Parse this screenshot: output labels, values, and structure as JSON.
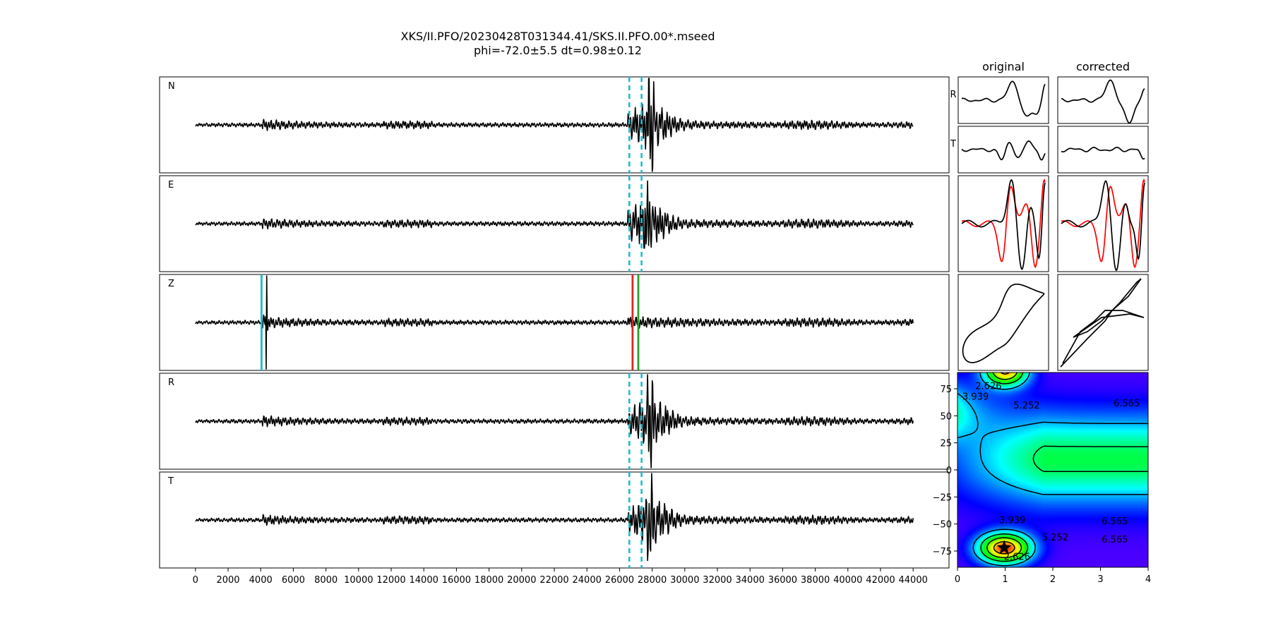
{
  "header": {
    "title_line1": "XKS/II.PFO/20230428T031344.41/SKS.II.PFO.00*.mseed",
    "title_line2": "phi=-72.0±5.5 dt=0.98±0.12"
  },
  "columns": {
    "original": "original",
    "corrected": "corrected"
  },
  "chart_data": [
    {
      "type": "line",
      "description_key": "waveform-traces",
      "traces": [
        {
          "name": "N",
          "burst_ratio": 1.4,
          "main_arrival": 27900,
          "peak_factor": 2.4
        },
        {
          "name": "E",
          "burst_ratio": 1.3,
          "main_arrival": 27700,
          "peak_factor": 1.7
        },
        {
          "name": "Z",
          "burst_ratio": 1.6,
          "main_arrival": 4350,
          "peak_factor": 1.6
        },
        {
          "name": "R",
          "burst_ratio": 1.4,
          "main_arrival": 27900,
          "peak_factor": 2.4
        },
        {
          "name": "T",
          "burst_ratio": 1.2,
          "main_arrival": 27900,
          "peak_factor": 2.1
        }
      ],
      "x_range": [
        0,
        44000
      ],
      "xlim": [
        -2200,
        46200
      ],
      "x_ticks": [
        0,
        2000,
        4000,
        6000,
        8000,
        10000,
        12000,
        14000,
        16000,
        18000,
        20000,
        22000,
        24000,
        26000,
        28000,
        30000,
        32000,
        34000,
        36000,
        38000,
        40000,
        42000,
        44000
      ],
      "x_tick_labels": [
        "0",
        "2000",
        "4000",
        "6000",
        "8000",
        "10000",
        "12000",
        "14000",
        "16000",
        "18000",
        "20000",
        "22000",
        "24000",
        "26000",
        "28000",
        "30000",
        "32000",
        "34000",
        "36000",
        "38000",
        "40000",
        "42000",
        "44000"
      ],
      "window_lines": {
        "start": 26600,
        "end": 27350,
        "color": "#17becf",
        "style": "dashed"
      },
      "z_markers": [
        {
          "x": 4050,
          "color": "#17becf"
        },
        {
          "x": 26800,
          "color": "#d62728"
        },
        {
          "x": 27150,
          "color": "#2ca02c"
        }
      ]
    },
    {
      "type": "line",
      "description_key": "particle-panels",
      "row_labels": [
        "R",
        "T"
      ],
      "series_colors": {
        "radial": "#000000",
        "transverse": "#ff0000"
      }
    },
    {
      "type": "heatmap",
      "description_key": "energy-grid",
      "x_ticks": [
        0,
        1,
        2,
        3,
        4
      ],
      "x_tick_labels": [
        "0",
        "1",
        "2",
        "3",
        "4"
      ],
      "xlim": [
        0,
        4
      ],
      "y_ticks": [
        75,
        50,
        25,
        0,
        -25,
        -50,
        -75
      ],
      "y_tick_labels": [
        "75",
        "50",
        "25",
        "0",
        "−25",
        "−50",
        "−75"
      ],
      "ylim": [
        -90,
        90
      ],
      "contour_levels": [
        "2.626",
        "3.939",
        "5.252",
        "6.565"
      ],
      "best_fit": {
        "dt": 0.98,
        "phi": -72.0
      }
    }
  ]
}
